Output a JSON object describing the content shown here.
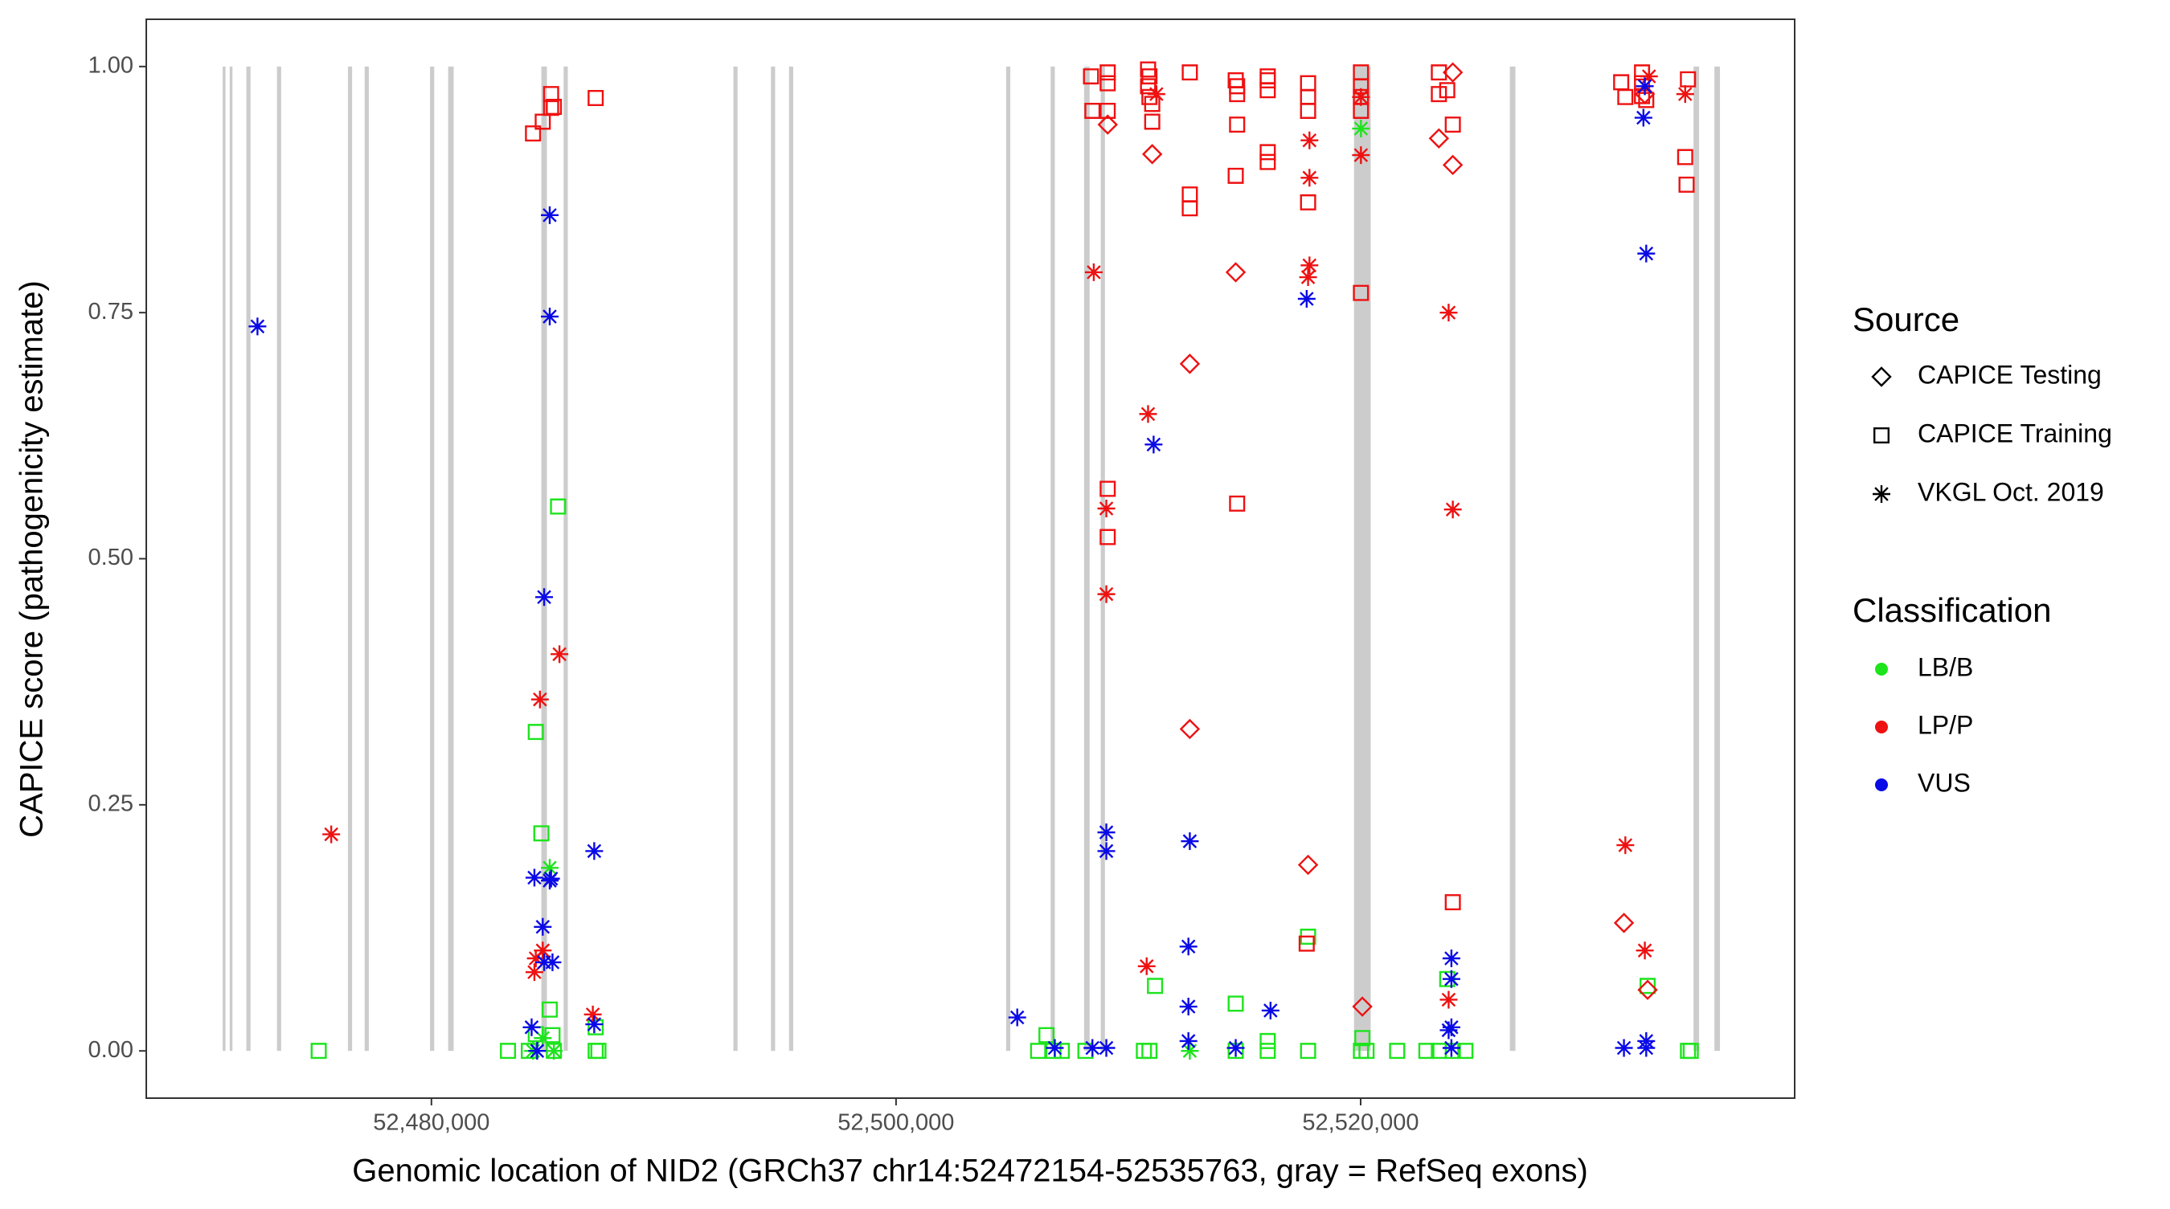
{
  "chart_data": {
    "type": "scatter",
    "x_label": "Genomic location of NID2 (GRCh37 chr14:52472154-52535763, gray = RefSeq exons)",
    "y_label": "CAPICE score (pathogenicity estimate)",
    "xlim": [
      52467725,
      52538683
    ],
    "ylim": [
      -0.048,
      1.048
    ],
    "xticks": [
      {
        "value": 52480000,
        "label": "52,480,000"
      },
      {
        "value": 52500000,
        "label": "52,500,000"
      },
      {
        "value": 52520000,
        "label": "52,520,000"
      }
    ],
    "yticks": [
      {
        "value": 0,
        "label": "0.00"
      },
      {
        "value": 0.25,
        "label": "0.25"
      },
      {
        "value": 0.5,
        "label": "0.50"
      },
      {
        "value": 0.75,
        "label": "0.75"
      },
      {
        "value": 1,
        "label": "1.00"
      }
    ],
    "grid": false,
    "exon_color": "#cccccc",
    "exons": [
      [
        52471015,
        52471135
      ],
      [
        52471315,
        52471435
      ],
      [
        52472033,
        52472213
      ],
      [
        52473351,
        52473531
      ],
      [
        52476406,
        52476586
      ],
      [
        52477125,
        52477305
      ],
      [
        52479940,
        52480120
      ],
      [
        52480719,
        52480958
      ],
      [
        52484732,
        52484972
      ],
      [
        52485691,
        52485870
      ],
      [
        52492998,
        52493178
      ],
      [
        52494616,
        52494795
      ],
      [
        52495394,
        52495574
      ],
      [
        52504739,
        52504918
      ],
      [
        52506656,
        52506835
      ],
      [
        52508093,
        52508333
      ],
      [
        52508812,
        52508992
      ],
      [
        52519714,
        52520433
      ],
      [
        52526423,
        52526662
      ],
      [
        52534329,
        52534569
      ],
      [
        52535228,
        52535467
      ]
    ],
    "shape_legend": {
      "title": "Source",
      "entries": [
        "CAPICE Testing",
        "CAPICE Training",
        "VKGL Oct. 2019"
      ],
      "shapes": [
        "diamond",
        "square",
        "asterisk"
      ]
    },
    "color_legend_title": "Classification",
    "series": [
      {
        "name": "LB/B",
        "color": "#1de41d",
        "x": [
          52475148,
          52483295,
          52484193,
          52484493,
          52484493,
          52484732,
          52485092,
          52485211,
          52485271,
          52485451,
          52487070,
          52487070,
          52487188,
          52485092,
          52484373,
          52484792,
          52485271,
          52506116,
          52506476,
          52506775,
          52507135,
          52508153,
          52510669,
          52510908,
          52511148,
          52512646,
          52514622,
          52514622,
          52516000,
          52516000,
          52517737,
          52517737,
          52520013,
          52520073,
          52520253,
          52521571,
          52522829,
          52523368,
          52523727,
          52523967,
          52524506,
          52520013,
          52532353,
          52534090,
          52534210
        ],
        "values": [
          0,
          0,
          0,
          0.017,
          0.324,
          0.221,
          0.042,
          0.016,
          0,
          0.553,
          0.024,
          0,
          0,
          0.186,
          0,
          0.013,
          0,
          0,
          0.016,
          0,
          0,
          0,
          0,
          0,
          0.066,
          0,
          0.048,
          0,
          0,
          0.01,
          0.116,
          0,
          0,
          0.013,
          0,
          0,
          0,
          0,
          0.073,
          0,
          0,
          0.937,
          0.066,
          0,
          0
        ],
        "source": [
          "CAPICE Training",
          "CAPICE Training",
          "CAPICE Training",
          "CAPICE Training",
          "CAPICE Training",
          "CAPICE Training",
          "CAPICE Training",
          "CAPICE Training",
          "CAPICE Training",
          "CAPICE Training",
          "CAPICE Training",
          "CAPICE Training",
          "CAPICE Training",
          "VKGL Oct. 2019",
          "VKGL Oct. 2019",
          "VKGL Oct. 2019",
          "VKGL Oct. 2019",
          "CAPICE Training",
          "CAPICE Training",
          "CAPICE Training",
          "CAPICE Training",
          "CAPICE Training",
          "CAPICE Training",
          "CAPICE Training",
          "CAPICE Training",
          "VKGL Oct. 2019",
          "CAPICE Training",
          "CAPICE Training",
          "CAPICE Training",
          "CAPICE Training",
          "CAPICE Training",
          "CAPICE Training",
          "CAPICE Training",
          "CAPICE Training",
          "CAPICE Training",
          "CAPICE Training",
          "CAPICE Training",
          "CAPICE Training",
          "CAPICE Training",
          "CAPICE Training",
          "CAPICE Training",
          "VKGL Oct. 2019",
          "CAPICE Training",
          "CAPICE Training",
          "CAPICE Training"
        ]
      },
      {
        "name": "LP/P",
        "color": "#ee1111",
        "x": [
          52475687,
          52484373,
          52484792,
          52485151,
          52485151,
          52485271,
          52487070,
          52484672,
          52485511,
          52484493,
          52484792,
          52484433,
          52486948,
          52508393,
          52508453,
          52509111,
          52509111,
          52509111,
          52509111,
          52509111,
          52510849,
          52510908,
          52510849,
          52510908,
          52511028,
          52511028,
          52512646,
          52512646,
          52512646,
          52514622,
          52514682,
          52514682,
          52514682,
          52514622,
          52514682,
          52516000,
          52516000,
          52516000,
          52516000,
          52516000,
          52517737,
          52517737,
          52517737,
          52517737,
          52517677,
          52520013,
          52520013,
          52520013,
          52520013,
          52520013,
          52523368,
          52523368,
          52523727,
          52523967,
          52523967,
          52531215,
          52531394,
          52532113,
          52532113,
          52532113,
          52532293,
          52533970,
          52534030,
          52534090,
          52508512,
          52510849,
          52509052,
          52509052,
          52511208,
          52510789,
          52517797,
          52517797,
          52517797,
          52517737,
          52520013,
          52520013,
          52523787,
          52523967,
          52523787,
          52531394,
          52532233,
          52533970,
          52532413,
          52509111,
          52511028,
          52512646,
          52512646,
          52514622,
          52517737,
          52520073,
          52523368,
          52523967,
          52523967,
          52531334,
          52532353,
          52532233
        ],
        "values": [
          0.22,
          0.932,
          0.944,
          0.972,
          0.958,
          0.959,
          0.968,
          0.357,
          0.403,
          0.094,
          0.102,
          0.08,
          0.037,
          0.99,
          0.955,
          0.994,
          0.983,
          0.955,
          0.571,
          0.522,
          0.997,
          0.99,
          0.98,
          0.969,
          0.962,
          0.944,
          0.994,
          0.87,
          0.856,
          0.986,
          0.98,
          0.972,
          0.941,
          0.889,
          0.556,
          0.99,
          0.986,
          0.976,
          0.913,
          0.903,
          0.983,
          0.969,
          0.955,
          0.862,
          0.109,
          0.994,
          0.98,
          0.969,
          0.955,
          0.77,
          0.994,
          0.972,
          0.976,
          0.941,
          0.151,
          0.984,
          0.969,
          0.994,
          0.983,
          0.97,
          0.966,
          0.908,
          0.88,
          0.987,
          0.791,
          0.647,
          0.551,
          0.464,
          0.972,
          0.086,
          0.925,
          0.887,
          0.798,
          0.786,
          0.91,
          0.969,
          0.75,
          0.55,
          0.052,
          0.209,
          0.102,
          0.972,
          0.99,
          0.941,
          0.911,
          0.698,
          0.327,
          0.791,
          0.189,
          0.045,
          0.927,
          0.9,
          0.994,
          0.13,
          0.062,
          0.972
        ],
        "source": [
          "VKGL Oct. 2019",
          "CAPICE Training",
          "CAPICE Training",
          "CAPICE Training",
          "CAPICE Training",
          "CAPICE Training",
          "CAPICE Training",
          "VKGL Oct. 2019",
          "VKGL Oct. 2019",
          "VKGL Oct. 2019",
          "VKGL Oct. 2019",
          "VKGL Oct. 2019",
          "VKGL Oct. 2019",
          "CAPICE Training",
          "CAPICE Training",
          "CAPICE Training",
          "CAPICE Training",
          "CAPICE Training",
          "CAPICE Training",
          "CAPICE Training",
          "CAPICE Training",
          "CAPICE Training",
          "CAPICE Training",
          "CAPICE Training",
          "CAPICE Training",
          "CAPICE Training",
          "CAPICE Training",
          "CAPICE Training",
          "CAPICE Training",
          "CAPICE Training",
          "CAPICE Training",
          "CAPICE Training",
          "CAPICE Training",
          "CAPICE Training",
          "CAPICE Training",
          "CAPICE Training",
          "CAPICE Training",
          "CAPICE Training",
          "CAPICE Training",
          "CAPICE Training",
          "CAPICE Training",
          "CAPICE Training",
          "CAPICE Training",
          "CAPICE Training",
          "CAPICE Training",
          "CAPICE Training",
          "CAPICE Training",
          "CAPICE Training",
          "CAPICE Training",
          "CAPICE Training",
          "CAPICE Training",
          "CAPICE Training",
          "CAPICE Training",
          "CAPICE Training",
          "CAPICE Training",
          "CAPICE Training",
          "CAPICE Training",
          "CAPICE Training",
          "CAPICE Training",
          "CAPICE Training",
          "CAPICE Training",
          "CAPICE Training",
          "CAPICE Training",
          "CAPICE Training",
          "VKGL Oct. 2019",
          "VKGL Oct. 2019",
          "VKGL Oct. 2019",
          "VKGL Oct. 2019",
          "VKGL Oct. 2019",
          "VKGL Oct. 2019",
          "VKGL Oct. 2019",
          "VKGL Oct. 2019",
          "VKGL Oct. 2019",
          "VKGL Oct. 2019",
          "VKGL Oct. 2019",
          "VKGL Oct. 2019",
          "VKGL Oct. 2019",
          "VKGL Oct. 2019",
          "VKGL Oct. 2019",
          "VKGL Oct. 2019",
          "VKGL Oct. 2019",
          "VKGL Oct. 2019",
          "VKGL Oct. 2019",
          "CAPICE Testing",
          "CAPICE Testing",
          "CAPICE Testing",
          "CAPICE Testing",
          "CAPICE Testing",
          "CAPICE Testing",
          "CAPICE Testing",
          "CAPICE Testing",
          "CAPICE Testing",
          "CAPICE Testing",
          "CAPICE Testing",
          "CAPICE Testing",
          "CAPICE Testing"
        ]
      },
      {
        "name": "VUS",
        "color": "#0a0ae6",
        "x": [
          52472512,
          52485092,
          52485092,
          52484852,
          52484433,
          52485092,
          52485151,
          52484792,
          52485211,
          52484852,
          52487008,
          52484313,
          52484552,
          52487008,
          52505218,
          52506835,
          52508453,
          52509052,
          52509052,
          52509052,
          52511088,
          52512646,
          52512586,
          52512586,
          52512586,
          52514622,
          52516120,
          52517677,
          52523907,
          52523907,
          52523907,
          52523787,
          52523907,
          52532233,
          52532173,
          52532293,
          52532293,
          52531334,
          52532293
        ],
        "values": [
          0.736,
          0.849,
          0.746,
          0.461,
          0.176,
          0.173,
          0.175,
          0.126,
          0.09,
          0.09,
          0.203,
          0.024,
          0,
          0.027,
          0.034,
          0.003,
          0.003,
          0.003,
          0.222,
          0.203,
          0.616,
          0.213,
          0.106,
          0.045,
          0.01,
          0.003,
          0.041,
          0.764,
          0.094,
          0.073,
          0.024,
          0.021,
          0.003,
          0.98,
          0.948,
          0.81,
          0.01,
          0.003,
          0.003
        ],
        "source": [
          "VKGL Oct. 2019",
          "VKGL Oct. 2019",
          "VKGL Oct. 2019",
          "VKGL Oct. 2019",
          "VKGL Oct. 2019",
          "VKGL Oct. 2019",
          "VKGL Oct. 2019",
          "VKGL Oct. 2019",
          "VKGL Oct. 2019",
          "VKGL Oct. 2019",
          "VKGL Oct. 2019",
          "VKGL Oct. 2019",
          "VKGL Oct. 2019",
          "VKGL Oct. 2019",
          "VKGL Oct. 2019",
          "VKGL Oct. 2019",
          "VKGL Oct. 2019",
          "VKGL Oct. 2019",
          "VKGL Oct. 2019",
          "VKGL Oct. 2019",
          "VKGL Oct. 2019",
          "VKGL Oct. 2019",
          "VKGL Oct. 2019",
          "VKGL Oct. 2019",
          "VKGL Oct. 2019",
          "VKGL Oct. 2019",
          "VKGL Oct. 2019",
          "VKGL Oct. 2019",
          "VKGL Oct. 2019",
          "VKGL Oct. 2019",
          "VKGL Oct. 2019",
          "VKGL Oct. 2019",
          "VKGL Oct. 2019",
          "VKGL Oct. 2019",
          "VKGL Oct. 2019",
          "VKGL Oct. 2019",
          "VKGL Oct. 2019",
          "VKGL Oct. 2019",
          "VKGL Oct. 2019"
        ]
      }
    ]
  }
}
